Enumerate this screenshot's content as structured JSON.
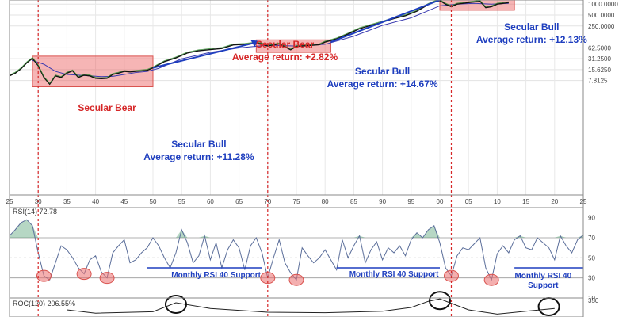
{
  "chart_data": [
    {
      "type": "line",
      "scale": "log",
      "x_range": [
        1925,
        2025
      ],
      "ylim": [
        5.5,
        1300000
      ],
      "x_tick_labels": [
        "25",
        "30",
        "35",
        "40",
        "45",
        "50",
        "55",
        "60",
        "65",
        "70",
        "75",
        "80",
        "85",
        "90",
        "95",
        "00",
        "05",
        "10",
        "15",
        "20",
        "25"
      ],
      "y_tick_labels": [
        "1000.0000",
        "500.0000",
        "250.0000",
        "62.5000",
        "31.2500",
        "15.6250",
        "7.8125"
      ],
      "y_tick_values": [
        1000000,
        500000,
        250000,
        62500,
        31250,
        15625,
        7812.5
      ],
      "series": [
        {
          "x": [
            1925,
            1926,
            1927,
            1928,
            1929,
            1930,
            1931,
            1932,
            1933,
            1934,
            1935,
            1936,
            1937,
            1938,
            1939,
            1940,
            1941,
            1942,
            1943,
            1944,
            1945,
            1946,
            1947,
            1948,
            1949,
            1950,
            1952,
            1954,
            1956,
            1958,
            1960,
            1962,
            1964,
            1966,
            1968,
            1969,
            1970,
            1972,
            1974,
            1975,
            1977,
            1979,
            1980,
            1982,
            1984,
            1986,
            1988,
            1990,
            1992,
            1994,
            1996,
            1998,
            1999,
            2000,
            2001,
            2002,
            2003,
            2005,
            2007,
            2008,
            2009,
            2010,
            2011,
            2012
          ],
          "values": [
            10500,
            12500,
            16500,
            24000,
            32000,
            20000,
            9500,
            6200,
            10500,
            9500,
            12500,
            14500,
            9500,
            11000,
            10500,
            9000,
            8800,
            9000,
            11500,
            12500,
            14000,
            13500,
            14000,
            14500,
            15000,
            17500,
            26000,
            33000,
            45000,
            52000,
            56000,
            60000,
            75000,
            78000,
            85000,
            80000,
            70000,
            80000,
            55000,
            68000,
            72000,
            76000,
            90000,
            110000,
            150000,
            210000,
            260000,
            320000,
            400000,
            480000,
            640000,
            980000,
            1150000,
            1250000,
            1000000,
            850000,
            1000000,
            1100000,
            1200000,
            800000,
            850000,
            1000000,
            1050000,
            1100000
          ]
        }
      ],
      "moving_averages": [
        {
          "x": [
            1929,
            1931,
            1933,
            1935,
            1937,
            1939,
            1941,
            1943,
            1945,
            1947,
            1949,
            1951,
            1955,
            1960,
            1965,
            1970,
            1975,
            1980,
            1985,
            1990,
            1995,
            2000,
            2003,
            2006,
            2009,
            2012
          ],
          "values": [
            28000,
            22000,
            14000,
            11500,
            11000,
            10500,
            10000,
            10200,
            11500,
            13000,
            14000,
            17000,
            31000,
            47000,
            62000,
            74000,
            70000,
            78000,
            130000,
            260000,
            420000,
            900000,
            1000000,
            1050000,
            1000000,
            1050000
          ]
        }
      ],
      "shaded_periods": [
        {
          "x_from": 1929,
          "x_to": 1950
        },
        {
          "x_from": 1968,
          "x_to": 1981
        },
        {
          "x_from": 2000,
          "x_to": 2013
        }
      ],
      "vertical_markers": [
        1930,
        1970,
        2002
      ],
      "trend_lines": [
        {
          "x_from": 1950,
          "y_from": 17500,
          "x_to": 1968,
          "y_to": 88000
        },
        {
          "x_from": 1981,
          "y_from": 90000,
          "x_to": 2000,
          "y_to": 1300000
        }
      ],
      "annotations": [
        {
          "lines": [
            "Secular Bear"
          ],
          "x": 1942,
          "color": "red"
        },
        {
          "lines": [
            "Secular Bull",
            "Average return:  +11.28%"
          ],
          "x": 1958,
          "color": "blue"
        },
        {
          "lines": [
            "Secular Bear",
            "Average return:  +2.82%"
          ],
          "x": 1973,
          "color": "red"
        },
        {
          "lines": [
            "Secular Bull",
            "Average return:  +14.67%"
          ],
          "x": 1990,
          "color": "blue"
        },
        {
          "lines": [
            "Secular Bull",
            "Average return:  +12.13%"
          ],
          "x": 2016,
          "color": "blue"
        }
      ]
    },
    {
      "type": "line",
      "label": "RSI(14) 72.78",
      "ylim": [
        10,
        100
      ],
      "y_tick_labels": [
        "90",
        "70",
        "50",
        "30",
        "10"
      ],
      "y_tick_values": [
        90,
        70,
        50,
        30,
        10
      ],
      "reference_levels": [
        70,
        50,
        30
      ],
      "series": [
        {
          "x": [
            1925,
            1926,
            1927,
            1928,
            1929,
            1930,
            1931,
            1932,
            1933,
            1934,
            1935,
            1936,
            1937,
            1938,
            1939,
            1940,
            1941,
            1942,
            1943,
            1944,
            1945,
            1946,
            1947,
            1948,
            1949,
            1950,
            1951,
            1952,
            1953,
            1954,
            1955,
            1956,
            1957,
            1958,
            1959,
            1960,
            1961,
            1962,
            1963,
            1964,
            1965,
            1966,
            1967,
            1968,
            1969,
            1970,
            1971,
            1972,
            1973,
            1974,
            1975,
            1976,
            1977,
            1978,
            1979,
            1980,
            1981,
            1982,
            1983,
            1984,
            1985,
            1986,
            1987,
            1988,
            1989,
            1990,
            1991,
            1992,
            1993,
            1994,
            1995,
            1996,
            1997,
            1998,
            1999,
            2000,
            2001,
            2002,
            2003,
            2004,
            2005,
            2006,
            2007,
            2008,
            2009,
            2010,
            2011,
            2012,
            2013,
            2014,
            2015,
            2016,
            2017,
            2018,
            2019,
            2020,
            2021,
            2022,
            2023,
            2024,
            2025
          ],
          "values": [
            72,
            78,
            85,
            88,
            82,
            55,
            32,
            28,
            45,
            62,
            58,
            50,
            40,
            34,
            48,
            52,
            36,
            30,
            55,
            62,
            68,
            45,
            48,
            55,
            60,
            70,
            62,
            50,
            40,
            55,
            78,
            65,
            45,
            52,
            72,
            48,
            65,
            40,
            58,
            68,
            60,
            38,
            62,
            70,
            55,
            30,
            50,
            68,
            45,
            35,
            28,
            60,
            52,
            45,
            50,
            58,
            48,
            38,
            68,
            50,
            62,
            72,
            45,
            58,
            66,
            48,
            60,
            55,
            62,
            52,
            68,
            75,
            70,
            78,
            82,
            65,
            40,
            32,
            52,
            60,
            58,
            64,
            70,
            40,
            28,
            54,
            62,
            55,
            68,
            72,
            60,
            58,
            70,
            65,
            60,
            48,
            72,
            62,
            55,
            68,
            72.78
          ]
        }
      ],
      "support_lines": [
        {
          "level": 40,
          "x_from": 1949,
          "x_to": 1969
        },
        {
          "level": 40,
          "x_from": 1982,
          "x_to": 2000
        },
        {
          "level": 40,
          "x_from": 2013,
          "x_to": 2025
        }
      ],
      "highlighted_lows": [
        1931,
        1938,
        1942,
        1970,
        1975,
        2002,
        2009
      ],
      "annotations": [
        {
          "lines": [
            "Monthly RSI 40 Support"
          ],
          "x": 1961
        },
        {
          "lines": [
            "Monthly RSI 40 Support"
          ],
          "x": 1992
        },
        {
          "lines": [
            "Monthly RSI 40",
            "Support"
          ],
          "x": 2018
        }
      ]
    },
    {
      "type": "line",
      "label": "ROC(120) 206.55%",
      "y_tick_labels": [
        "350"
      ],
      "y_tick_values": [
        350
      ],
      "series": [
        {
          "x": [
            1935,
            1940,
            1950,
            1954,
            1960,
            1970,
            1980,
            1990,
            1995,
            1998,
            2000,
            2005,
            2010,
            2015,
            2020
          ],
          "values": [
            150,
            80,
            110,
            300,
            180,
            100,
            90,
            120,
            200,
            330,
            380,
            150,
            60,
            120,
            180
          ]
        }
      ],
      "highlighted_peaks": [
        1954,
        2000,
        2019
      ]
    }
  ]
}
